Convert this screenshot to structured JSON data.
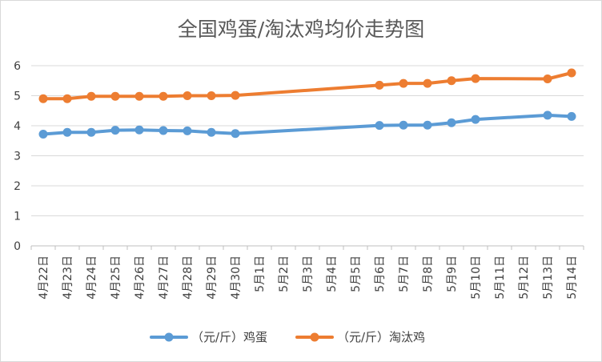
{
  "chart_data": {
    "type": "line",
    "title": "全国鸡蛋/淘汰鸡均价走势图",
    "categories": [
      "4月22日",
      "4月23日",
      "4月24日",
      "4月25日",
      "4月26日",
      "4月27日",
      "4月28日",
      "4月29日",
      "4月30日",
      "5月1日",
      "5月2日",
      "5月3日",
      "5月4日",
      "5月5日",
      "5月6日",
      "5月7日",
      "5月8日",
      "5月9日",
      "5月10日",
      "5月11日",
      "5月12日",
      "5月13日",
      "5月14日"
    ],
    "ylim": [
      0,
      6
    ],
    "yticks": [
      0,
      1,
      2,
      3,
      4,
      5,
      6
    ],
    "grid": true,
    "legend_position": "bottom",
    "series": [
      {
        "name": "（元/斤）鸡蛋",
        "color": "#5B9BD5",
        "values": [
          3.72,
          3.78,
          3.78,
          3.85,
          3.86,
          3.84,
          3.83,
          3.78,
          3.74,
          null,
          null,
          null,
          null,
          null,
          4.01,
          4.02,
          4.02,
          4.1,
          4.21,
          null,
          null,
          4.35,
          4.31
        ]
      },
      {
        "name": "（元/斤）淘汰鸡",
        "color": "#ED7D31",
        "values": [
          4.9,
          4.9,
          4.98,
          4.98,
          4.98,
          4.98,
          5.0,
          5.0,
          5.01,
          null,
          null,
          null,
          null,
          null,
          5.35,
          5.41,
          5.41,
          5.5,
          5.57,
          null,
          null,
          5.56,
          5.76
        ]
      }
    ]
  }
}
